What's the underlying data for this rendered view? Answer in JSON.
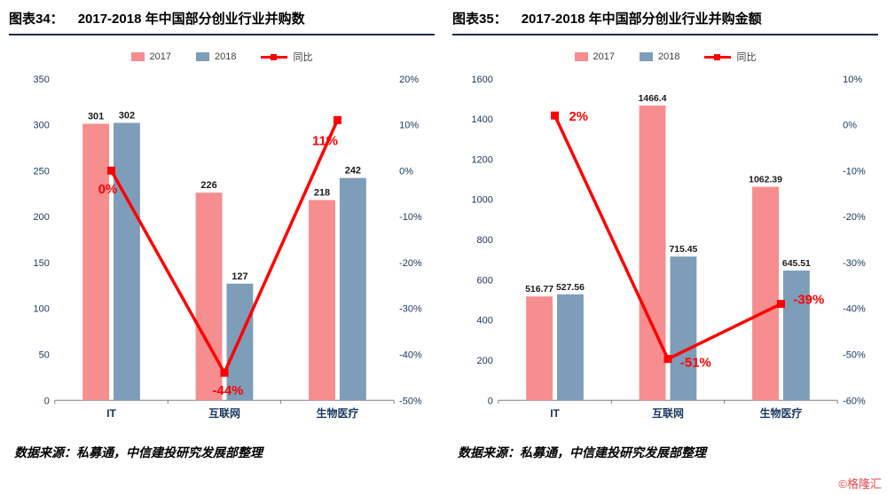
{
  "page": {
    "watermark": "©格隆汇"
  },
  "charts": [
    {
      "title_prefix": "图表34：",
      "title": "2017-2018 年中国部分创业行业并购数",
      "source": "数据来源：私募通，中信建投研究发展部整理",
      "chart_data": {
        "type": "bar+line",
        "categories": [
          "IT",
          "互联网",
          "生物医疗"
        ],
        "series": [
          {
            "name": "2017",
            "type": "bar",
            "color": "#F68D8F",
            "values": [
              301,
              226,
              218
            ]
          },
          {
            "name": "2018",
            "type": "bar",
            "color": "#7E9DB9",
            "values": [
              302,
              127,
              242
            ]
          },
          {
            "name": "同比",
            "type": "line",
            "axis": "right",
            "color": "#FF0000",
            "values": [
              0,
              -44,
              11
            ],
            "point_labels": [
              "0%",
              "-44%",
              "11%"
            ]
          }
        ],
        "left_axis": {
          "min": 0,
          "max": 350,
          "step": 50
        },
        "right_axis": {
          "min": -50,
          "max": 20,
          "step": 10,
          "suffix": "%"
        },
        "legend_position": "top",
        "grid": false,
        "point_label_offsets": [
          [
            -4,
            26,
            "middle"
          ],
          [
            4,
            25,
            "middle"
          ],
          [
            -14,
            28,
            "middle"
          ]
        ],
        "bar_label_size": 11
      }
    },
    {
      "title_prefix": "图表35：",
      "title": "2017-2018 年中国部分创业行业并购金额",
      "source": "数据来源：私募通，中信建投研究发展部整理",
      "chart_data": {
        "type": "bar+line",
        "categories": [
          "IT",
          "互联网",
          "生物医疗"
        ],
        "series": [
          {
            "name": "2017",
            "type": "bar",
            "color": "#F68D8F",
            "values": [
              516.77,
              1466.4,
              1062.39
            ]
          },
          {
            "name": "2018",
            "type": "bar",
            "color": "#7E9DB9",
            "values": [
              527.56,
              715.45,
              645.51
            ]
          },
          {
            "name": "同比",
            "type": "line",
            "axis": "right",
            "color": "#FF0000",
            "values": [
              2,
              -51,
              -39
            ],
            "point_labels": [
              "2%",
              "-51%",
              "-39%"
            ]
          }
        ],
        "left_axis": {
          "min": 0,
          "max": 1600,
          "step": 200
        },
        "right_axis": {
          "min": -60,
          "max": 10,
          "step": 10,
          "suffix": "%"
        },
        "legend_position": "top",
        "grid": false,
        "point_label_offsets": [
          [
            16,
            6,
            "start"
          ],
          [
            14,
            9,
            "start"
          ],
          [
            14,
            0,
            "start"
          ]
        ],
        "bar_label_size": 10.5
      }
    }
  ]
}
